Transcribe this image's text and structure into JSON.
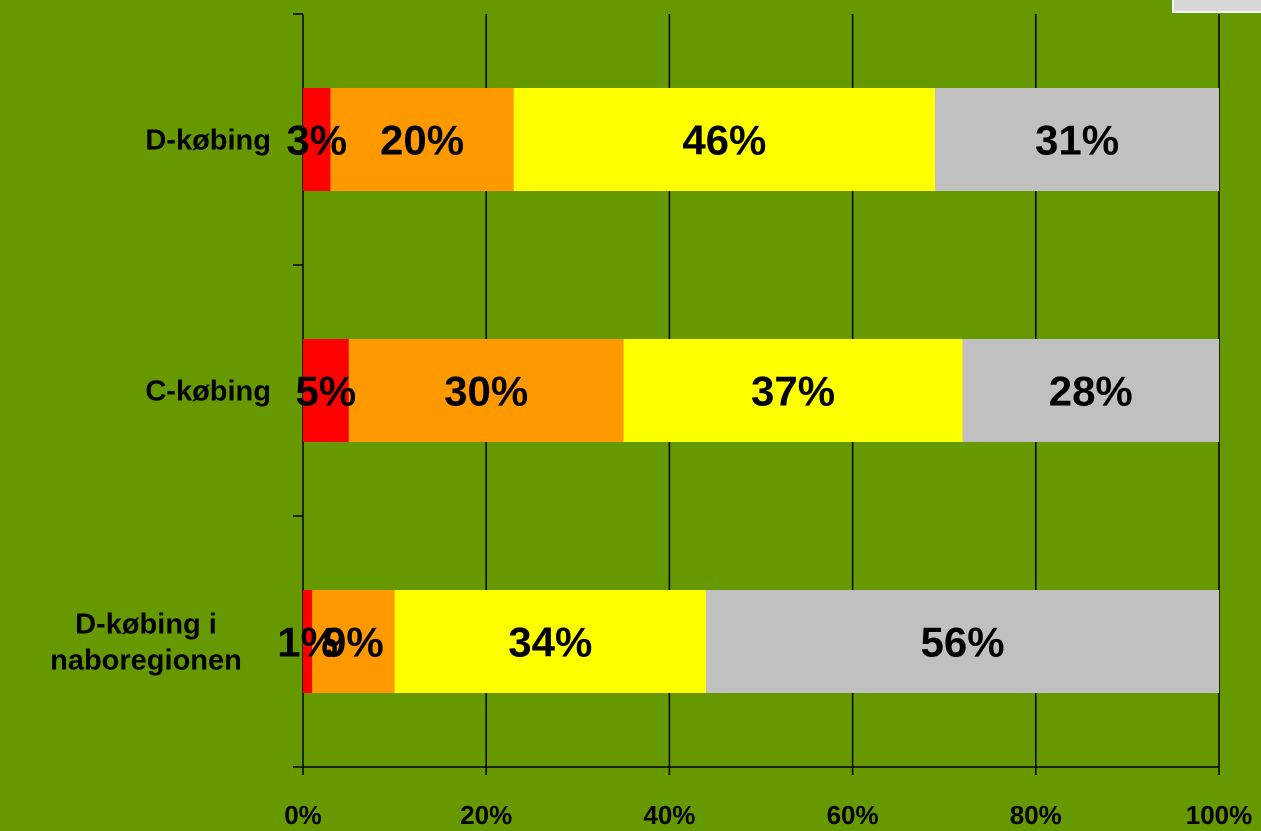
{
  "chart_data": {
    "type": "bar",
    "orientation": "horizontal",
    "stacked": true,
    "normalized_percent": true,
    "categories": [
      [
        "D-købing"
      ],
      [
        "C-købing"
      ],
      [
        "D-købing i",
        "naboregionen"
      ]
    ],
    "series": [
      {
        "color": "#ff0000",
        "values": [
          3,
          5,
          1
        ],
        "labels": [
          "3%",
          "5%",
          "1%"
        ]
      },
      {
        "color": "#ff9900",
        "values": [
          20,
          30,
          9
        ],
        "labels": [
          "20%",
          "30%",
          "9%"
        ]
      },
      {
        "color": "#ffff00",
        "values": [
          46,
          37,
          34
        ],
        "labels": [
          "46%",
          "37%",
          "34%"
        ]
      },
      {
        "color": "#c0c0c0",
        "values": [
          31,
          28,
          56
        ],
        "labels": [
          "31%",
          "28%",
          "56%"
        ]
      }
    ],
    "xlim": [
      0,
      100
    ],
    "xticks": [
      0,
      20,
      40,
      60,
      80,
      100
    ],
    "xtick_labels": [
      "0%",
      "20%",
      "40%",
      "60%",
      "80%",
      "100%"
    ],
    "grid": "vertical",
    "background_color": "#669900",
    "title": "",
    "xlabel": "",
    "ylabel": ""
  }
}
